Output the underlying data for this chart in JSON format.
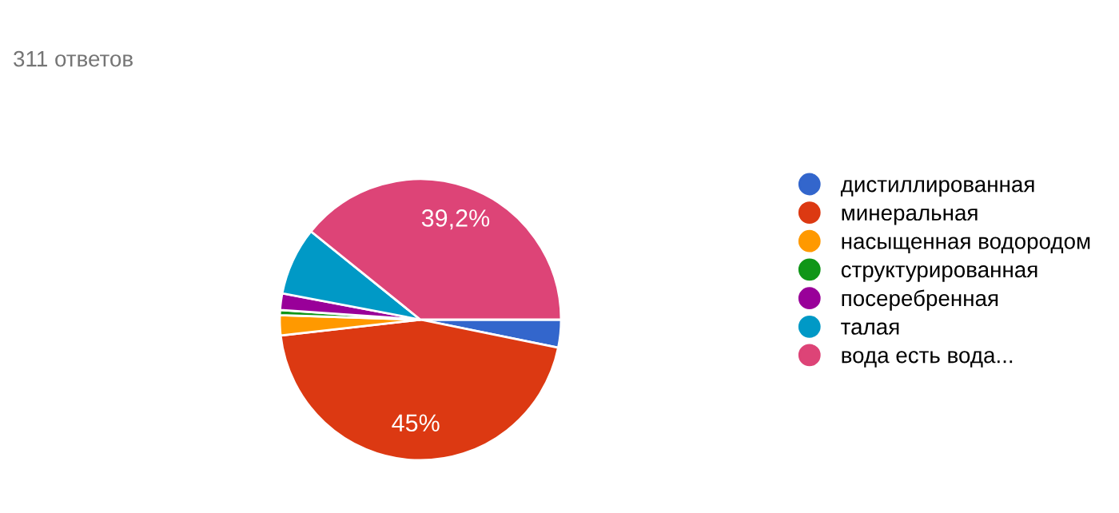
{
  "chart_data": {
    "type": "pie",
    "title": "311 ответов",
    "categories": [
      "дистиллированная",
      "минеральная",
      "насыщенная водородом",
      "структурированная",
      "посеребренная",
      "талая",
      "вода есть вода..."
    ],
    "values": [
      3.2,
      45,
      2.3,
      0.6,
      1.9,
      7.8,
      39.2
    ],
    "colors": [
      "#3366cc",
      "#dc3912",
      "#ff9900",
      "#109618",
      "#990099",
      "#0099c6",
      "#dd4477"
    ],
    "value_labels": [
      null,
      "45%",
      null,
      null,
      null,
      null,
      "39,2%"
    ],
    "legend": "right"
  }
}
